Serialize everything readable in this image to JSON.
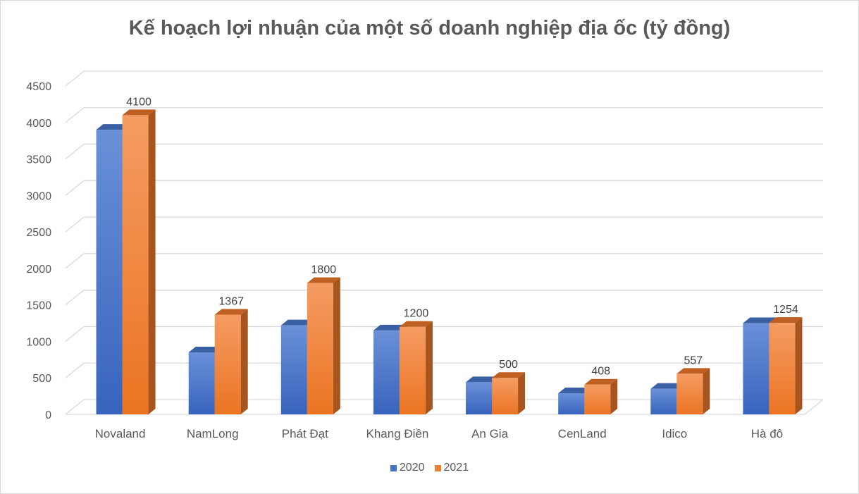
{
  "chart_data": {
    "type": "bar",
    "title": "Kế hoạch lợi nhuận của một số doanh nghiệp địa ốc (tỷ đồng)",
    "categories": [
      "Novaland",
      "NamLong",
      "Phát Đạt",
      "Khang Điền",
      "An Gia",
      "CenLand",
      "Idico",
      "Hà đô"
    ],
    "series": [
      {
        "name": "2020",
        "values": [
          3900,
          850,
          1220,
          1150,
          440,
          290,
          350,
          1250
        ],
        "color": "#4472C4"
      },
      {
        "name": "2021",
        "values": [
          4100,
          1367,
          1800,
          1200,
          500,
          408,
          557,
          1254
        ],
        "color": "#ED7D31"
      }
    ],
    "data_labels": [
      "4100",
      "1367",
      "1800",
      "1200",
      "500",
      "408",
      "557",
      "1254"
    ],
    "yticks": [
      "0",
      "500",
      "1000",
      "1500",
      "2000",
      "2500",
      "3000",
      "3500",
      "4000",
      "4500"
    ],
    "ylim": [
      0,
      4500
    ],
    "xlabel": "",
    "ylabel": "",
    "grid": true,
    "legend": "bottom"
  }
}
